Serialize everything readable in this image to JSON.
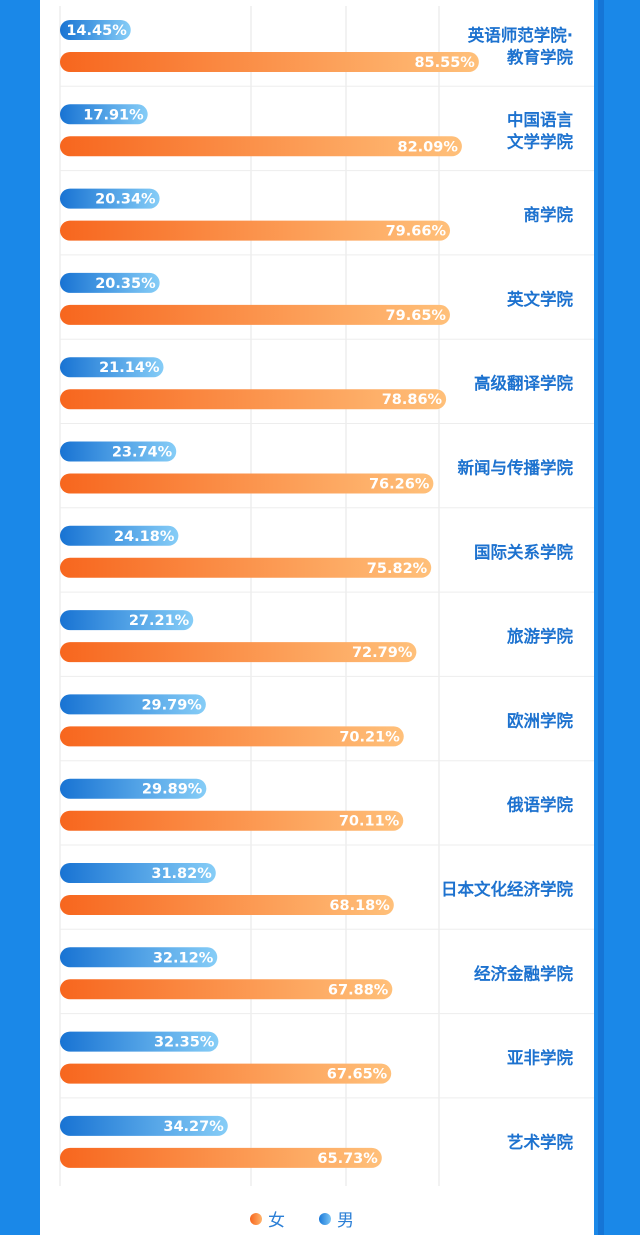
{
  "chart_data": {
    "type": "bar",
    "orientation": "horizontal",
    "value_format": "percent",
    "xlim": [
      0,
      100
    ],
    "grid": true,
    "legend_position": "bottom",
    "categories": [
      "英语师范学院·\n教育学院",
      "中国语言\n文学学院",
      "商学院",
      "英文学院",
      "高级翻译学院",
      "新闻与传播学院",
      "国际关系学院",
      "旅游学院",
      "欧洲学院",
      "俄语学院",
      "日本文化经济学院",
      "经济金融学院",
      "亚非学院",
      "艺术学院"
    ],
    "series": [
      {
        "name": "男",
        "color": "#1a78d8",
        "values": [
          14.45,
          17.91,
          20.34,
          20.35,
          21.14,
          23.74,
          24.18,
          27.21,
          29.79,
          29.89,
          31.82,
          32.12,
          32.35,
          34.27
        ]
      },
      {
        "name": "女",
        "color": "#f7661e",
        "values": [
          85.55,
          82.09,
          79.66,
          79.65,
          78.86,
          76.26,
          75.82,
          72.79,
          70.21,
          70.11,
          68.18,
          67.88,
          67.65,
          65.73
        ]
      }
    ]
  },
  "legend": {
    "female": "女",
    "male": "男"
  }
}
